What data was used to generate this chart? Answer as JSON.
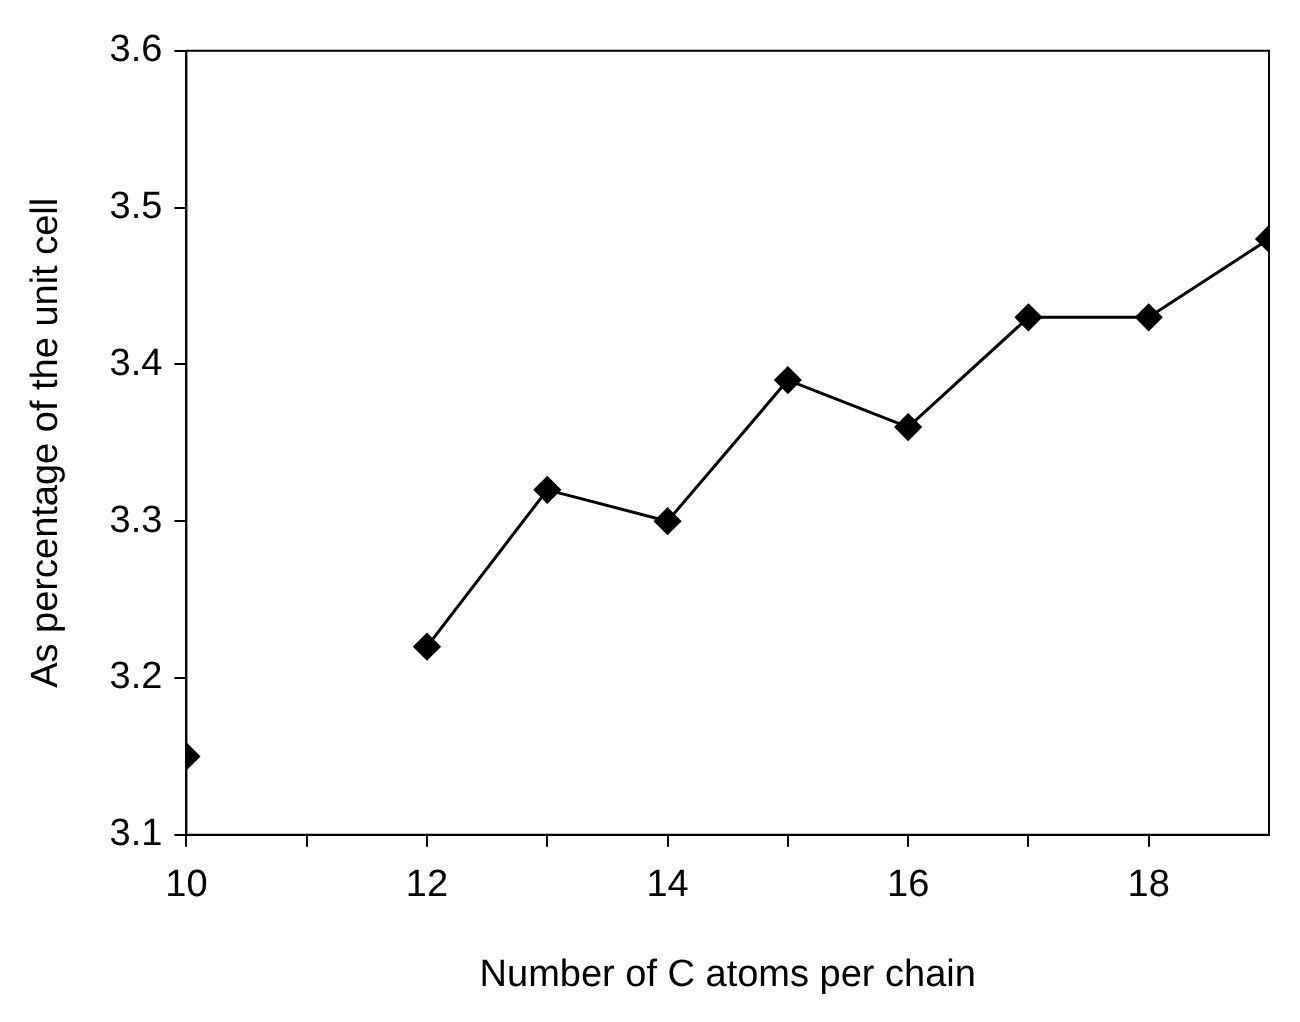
{
  "chart_data": {
    "type": "line",
    "xlabel": "Number of C atoms per chain",
    "ylabel": "As percentage of the unit cell",
    "x": [
      10,
      11,
      12,
      13,
      14,
      15,
      16,
      17,
      18,
      19
    ],
    "series": [
      {
        "color": "#000000",
        "values": [
          3.15,
          null,
          3.22,
          3.32,
          3.3,
          3.39,
          3.36,
          3.43,
          3.43,
          3.48
        ]
      }
    ],
    "xlim": [
      10,
      19
    ],
    "xticks": [
      10,
      {
        "value": 11,
        "label": null
      },
      12,
      {
        "value": 13,
        "label": null
      },
      14,
      {
        "value": 15,
        "label": null
      },
      16,
      {
        "value": 17,
        "label": null
      },
      18
    ],
    "ylim": [
      3.1,
      3.6
    ],
    "yticks": [
      3.1,
      3.2,
      3.3,
      3.4,
      3.5,
      3.6
    ],
    "marker": "diamond",
    "line_style": "solid",
    "grid": false,
    "legend": false
  }
}
